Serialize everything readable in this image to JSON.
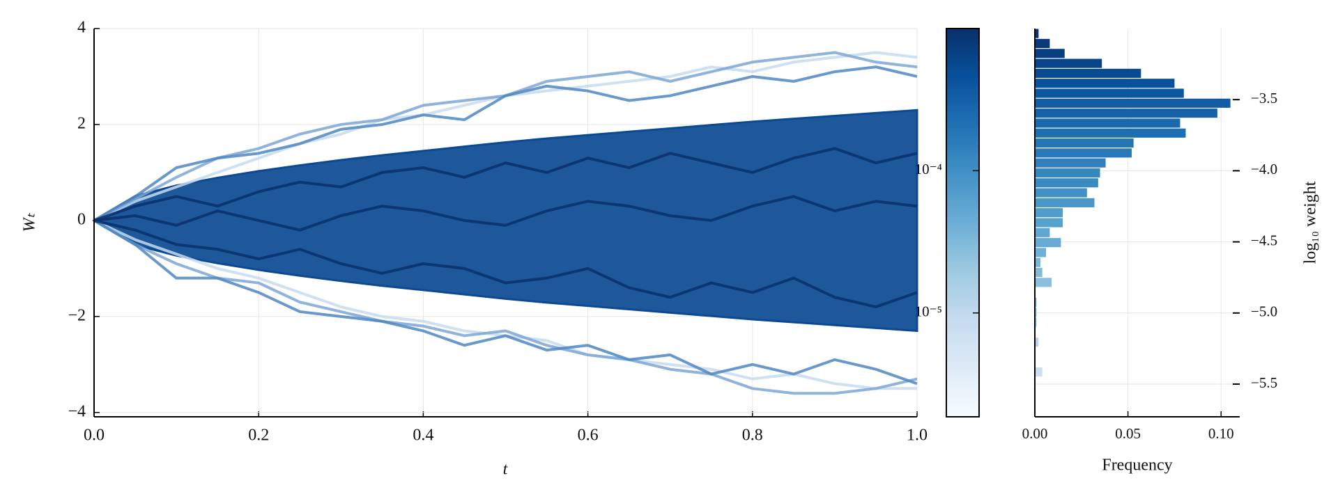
{
  "chart_data": [
    {
      "type": "line",
      "xlabel": "t",
      "ylabel": "Wₜ",
      "grid": true,
      "x": [
        0,
        0.05,
        0.1,
        0.15,
        0.2,
        0.25,
        0.3,
        0.35,
        0.4,
        0.45,
        0.5,
        0.55,
        0.6,
        0.65,
        0.7,
        0.75,
        0.8,
        0.85,
        0.9,
        0.95,
        1.0
      ],
      "xlim": [
        0,
        1
      ],
      "xticks": [
        {
          "value": 0,
          "label": "0.0"
        },
        {
          "value": 0.2,
          "label": "0.2"
        },
        {
          "value": 0.4,
          "label": "0.4"
        },
        {
          "value": 0.6,
          "label": "0.6"
        },
        {
          "value": 0.8,
          "label": "0.8"
        },
        {
          "value": 1,
          "label": "1.0"
        }
      ],
      "ylim": [
        -4.09,
        4.0
      ],
      "yticks": [
        {
          "value": -4,
          "label": "−4"
        },
        {
          "value": -2,
          "label": "−2"
        },
        0,
        2,
        4
      ],
      "band": {
        "color": "#0b4a93",
        "upper": [
          0,
          0.51,
          0.73,
          0.89,
          1.03,
          1.15,
          1.26,
          1.36,
          1.45,
          1.54,
          1.63,
          1.71,
          1.78,
          1.85,
          1.92,
          1.99,
          2.06,
          2.12,
          2.18,
          2.24,
          2.3
        ],
        "lower": [
          0,
          -0.51,
          -0.73,
          -0.89,
          -1.03,
          -1.15,
          -1.26,
          -1.36,
          -1.45,
          -1.54,
          -1.63,
          -1.71,
          -1.78,
          -1.85,
          -1.92,
          -1.99,
          -2.06,
          -2.12,
          -2.18,
          -2.24,
          -2.3
        ]
      },
      "series": [
        {
          "color": "#c6dbef",
          "values": [
            0,
            0.4,
            0.7,
            1.0,
            1.3,
            1.6,
            1.8,
            2.1,
            2.2,
            2.4,
            2.6,
            2.7,
            2.8,
            2.9,
            3.0,
            3.2,
            3.1,
            3.3,
            3.4,
            3.5,
            3.4
          ]
        },
        {
          "color": "#c6dbef",
          "values": [
            0,
            -0.4,
            -0.7,
            -1.0,
            -1.2,
            -1.5,
            -1.8,
            -2.0,
            -2.1,
            -2.3,
            -2.4,
            -2.5,
            -2.8,
            -2.9,
            -3.0,
            -3.1,
            -3.3,
            -3.2,
            -3.4,
            -3.5,
            -3.5
          ]
        },
        {
          "color": "#7ba6d3",
          "values": [
            0,
            0.45,
            0.9,
            1.3,
            1.5,
            1.8,
            2.0,
            2.1,
            2.4,
            2.5,
            2.6,
            2.9,
            3.0,
            3.1,
            2.9,
            3.1,
            3.3,
            3.4,
            3.5,
            3.3,
            3.2
          ]
        },
        {
          "color": "#7ba6d3",
          "values": [
            0,
            -0.5,
            -0.9,
            -1.2,
            -1.3,
            -1.7,
            -1.9,
            -2.1,
            -2.2,
            -2.4,
            -2.3,
            -2.6,
            -2.8,
            -2.9,
            -3.1,
            -3.2,
            -3.5,
            -3.6,
            -3.6,
            -3.5,
            -3.3
          ]
        },
        {
          "color": "#4f86c2",
          "values": [
            0,
            0.5,
            1.1,
            1.3,
            1.4,
            1.6,
            1.9,
            2.0,
            2.2,
            2.1,
            2.6,
            2.8,
            2.7,
            2.5,
            2.6,
            2.8,
            3.0,
            2.9,
            3.1,
            3.2,
            3.0
          ]
        },
        {
          "color": "#4f86c2",
          "values": [
            0,
            -0.5,
            -1.2,
            -1.2,
            -1.5,
            -1.9,
            -2.0,
            -2.1,
            -2.3,
            -2.6,
            -2.4,
            -2.7,
            -2.6,
            -2.9,
            -2.8,
            -3.2,
            -3.0,
            -3.2,
            -2.9,
            -3.1,
            -3.4
          ]
        },
        {
          "color": "#08306b",
          "values": [
            0,
            0.3,
            0.5,
            0.3,
            0.6,
            0.8,
            0.7,
            1.0,
            1.1,
            0.9,
            1.2,
            1.0,
            1.3,
            1.1,
            1.4,
            1.2,
            1.0,
            1.3,
            1.5,
            1.2,
            1.4
          ]
        },
        {
          "color": "#08306b",
          "values": [
            0,
            -0.2,
            -0.5,
            -0.6,
            -0.8,
            -0.6,
            -0.9,
            -1.1,
            -0.9,
            -1.0,
            -1.3,
            -1.2,
            -1.0,
            -1.4,
            -1.6,
            -1.3,
            -1.5,
            -1.2,
            -1.6,
            -1.8,
            -1.5
          ]
        },
        {
          "color": "#08306b",
          "values": [
            0,
            0.1,
            -0.1,
            0.2,
            0.0,
            -0.2,
            0.1,
            0.3,
            0.2,
            0.0,
            -0.1,
            0.2,
            0.4,
            0.3,
            0.1,
            0.0,
            0.3,
            0.5,
            0.2,
            0.4,
            0.3
          ]
        }
      ]
    },
    {
      "type": "colorbar",
      "scale": "log",
      "clim": [
        1.86e-06,
        0.001
      ],
      "colors": [
        "#f7fbff",
        "#deebf7",
        "#c6dbef",
        "#9ecae1",
        "#6baed6",
        "#4292c6",
        "#2171b5",
        "#08519c",
        "#08306b"
      ],
      "ticks": [
        {
          "value": 0.0001,
          "label": "10⁻⁴"
        },
        {
          "value": 1e-05,
          "label": "10⁻⁵"
        }
      ]
    },
    {
      "type": "histogram",
      "orientation": "horizontal",
      "xlabel": "Frequency",
      "ylabel": "log₁₀ weight",
      "grid": true,
      "ytick_side": "right",
      "colors": [
        "#f7fbff",
        "#deebf7",
        "#c6dbef",
        "#9ecae1",
        "#6baed6",
        "#4292c6",
        "#2171b5",
        "#08519c",
        "#08306b"
      ],
      "bins": [
        -5.73,
        -5.66,
        -5.59,
        -5.52,
        -5.45,
        -5.38,
        -5.31,
        -5.24,
        -5.17,
        -5.1,
        -5.03,
        -4.96,
        -4.89,
        -4.82,
        -4.75,
        -4.68,
        -4.61,
        -4.54,
        -4.47,
        -4.4,
        -4.33,
        -4.26,
        -4.19,
        -4.12,
        -4.05,
        -3.98,
        -3.91,
        -3.84,
        -3.77,
        -3.7,
        -3.63,
        -3.56,
        -3.49,
        -3.42,
        -3.35,
        -3.28,
        -3.21,
        -3.14,
        -3.07,
        -3.0
      ],
      "counts": [
        0,
        0,
        0,
        0,
        0.004,
        0,
        0,
        0.002,
        0,
        0.001,
        0.001,
        0.001,
        0,
        0.009,
        0.004,
        0.003,
        0.006,
        0.014,
        0.008,
        0.015,
        0.015,
        0.032,
        0.028,
        0.034,
        0.035,
        0.038,
        0.052,
        0.053,
        0.081,
        0.078,
        0.098,
        0.105,
        0.08,
        0.075,
        0.057,
        0.036,
        0.016,
        0.008,
        0.002
      ],
      "xlim": [
        0,
        0.11
      ],
      "xticks": [
        {
          "value": 0,
          "label": "0.00"
        },
        {
          "value": 0.05,
          "label": "0.05"
        },
        {
          "value": 0.1,
          "label": "0.10"
        }
      ],
      "ylim": [
        -5.73,
        -3.0
      ],
      "yticks": [
        {
          "value": -3.5,
          "label": "−3.5"
        },
        {
          "value": -4.0,
          "label": "−4.0"
        },
        {
          "value": -4.5,
          "label": "−4.5"
        },
        {
          "value": -5.0,
          "label": "−5.0"
        },
        {
          "value": -5.5,
          "label": "−5.5"
        }
      ]
    }
  ]
}
